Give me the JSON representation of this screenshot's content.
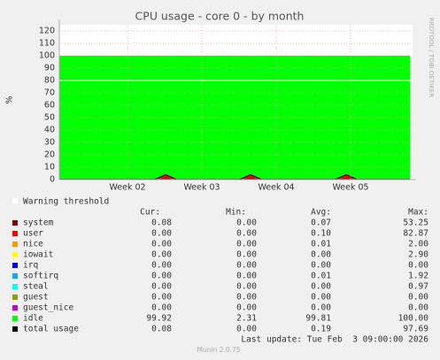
{
  "chart_data": {
    "type": "area",
    "title": "CPU usage - core 0 - by month",
    "y_label": "%",
    "side_text": "RRDTOOL / TOBI OETIKER",
    "xlim": [
      0,
      33.25
    ],
    "xticks": [
      {
        "value": 6.42,
        "label": "Week 02"
      },
      {
        "value": 13.42,
        "label": "Week 03"
      },
      {
        "value": 20.42,
        "label": "Week 04"
      },
      {
        "value": 27.42,
        "label": "Week 05"
      }
    ],
    "ylim": [
      0,
      125
    ],
    "yticks": [
      0,
      10,
      20,
      30,
      40,
      50,
      60,
      70,
      80,
      90,
      100,
      110,
      120
    ],
    "grid": true,
    "warning": 80,
    "x": [
      0,
      1,
      2,
      3,
      4,
      5,
      6,
      7,
      8,
      9,
      10,
      11,
      12,
      13,
      14,
      15,
      16,
      17,
      18,
      19,
      20,
      21,
      22,
      23,
      24,
      25,
      26,
      27,
      28,
      29,
      30,
      31,
      32,
      33
    ],
    "series": [
      {
        "name": "system",
        "color": "#880000",
        "stack": true,
        "values": [
          0.08,
          0.08,
          0.08,
          0.08,
          0.08,
          0.08,
          0.08,
          0.08,
          0.08,
          0.08,
          1.5,
          0.08,
          0.08,
          0.08,
          0.08,
          0.08,
          0.08,
          0.08,
          1.5,
          0.08,
          0.08,
          0.08,
          0.08,
          0.08,
          0.08,
          0.08,
          0.08,
          1.5,
          0.08,
          0.08,
          0.08,
          0.08,
          0.08,
          0.08
        ]
      },
      {
        "name": "user",
        "color": "#ff0000",
        "stack": true,
        "values": [
          0.1,
          0.1,
          0.1,
          0.1,
          0.1,
          0.1,
          0.1,
          0.1,
          0.1,
          0.1,
          2.5,
          0.1,
          0.1,
          0.1,
          0.1,
          0.1,
          0.1,
          0.1,
          2.5,
          0.1,
          0.1,
          0.1,
          0.1,
          0.1,
          0.1,
          0.1,
          0.1,
          2.5,
          0.1,
          0.1,
          0.1,
          0.1,
          0.1,
          0.1
        ]
      },
      {
        "name": "idle",
        "color": "#00ff00",
        "stack": true,
        "values": [
          99.82,
          99.82,
          99.82,
          99.82,
          99.82,
          99.82,
          99.82,
          99.82,
          99.82,
          99.82,
          96,
          99.82,
          99.82,
          99.82,
          99.82,
          99.82,
          99.82,
          99.82,
          96,
          99.82,
          99.82,
          99.82,
          99.82,
          99.82,
          99.82,
          99.82,
          99.82,
          96,
          99.82,
          99.82,
          99.82,
          99.82,
          99.82,
          99.82
        ]
      },
      {
        "name": "total usage",
        "color": "#000000",
        "stack": false,
        "values": [
          0.18,
          0.18,
          0.18,
          0.18,
          0.18,
          0.18,
          0.18,
          0.18,
          0.18,
          0.18,
          4,
          0.18,
          0.18,
          0.18,
          0.18,
          0.18,
          0.18,
          0.18,
          4,
          0.18,
          0.18,
          0.18,
          0.18,
          0.18,
          0.18,
          0.18,
          0.18,
          4,
          0.18,
          0.18,
          0.18,
          0.18,
          0.18,
          0.18
        ]
      }
    ],
    "legend_threshold": "Warning threshold",
    "legend_header": [
      "Cur:",
      "Min:",
      "Avg:",
      "Max:"
    ],
    "legend": [
      {
        "name": "system",
        "color": "#880000",
        "stats": [
          "0.08",
          "0.00",
          "0.07",
          "53.25"
        ]
      },
      {
        "name": "user",
        "color": "#ff0000",
        "stats": [
          "0.00",
          "0.00",
          "0.10",
          "82.87"
        ]
      },
      {
        "name": "nice",
        "color": "#ff9900",
        "stats": [
          "0.00",
          "0.00",
          "0.01",
          "2.00"
        ]
      },
      {
        "name": "iowait",
        "color": "#ffff00",
        "stats": [
          "0.00",
          "0.00",
          "0.00",
          "2.90"
        ]
      },
      {
        "name": "irq",
        "color": "#0000ff",
        "stats": [
          "0.00",
          "0.00",
          "0.00",
          "0.00"
        ]
      },
      {
        "name": "softirq",
        "color": "#00aaff",
        "stats": [
          "0.00",
          "0.00",
          "0.01",
          "1.92"
        ]
      },
      {
        "name": "steal",
        "color": "#00ffff",
        "stats": [
          "0.00",
          "0.00",
          "0.00",
          "0.97"
        ]
      },
      {
        "name": "guest",
        "color": "#999900",
        "stats": [
          "0.00",
          "0.00",
          "0.00",
          "0.00"
        ]
      },
      {
        "name": "guest_nice",
        "color": "#cc00cc",
        "stats": [
          "0.00",
          "0.00",
          "0.00",
          "0.00"
        ]
      },
      {
        "name": "idle",
        "color": "#00ff00",
        "stats": [
          "99.92",
          "2.31",
          "99.81",
          "100.00"
        ]
      },
      {
        "name": "total usage",
        "color": "#000000",
        "stats": [
          "0.08",
          "0.00",
          "0.19",
          "97.69"
        ]
      }
    ],
    "last_update": "Last update: Tue Feb  3 09:00:00 2026",
    "footer": "Munin 2.0.75"
  }
}
